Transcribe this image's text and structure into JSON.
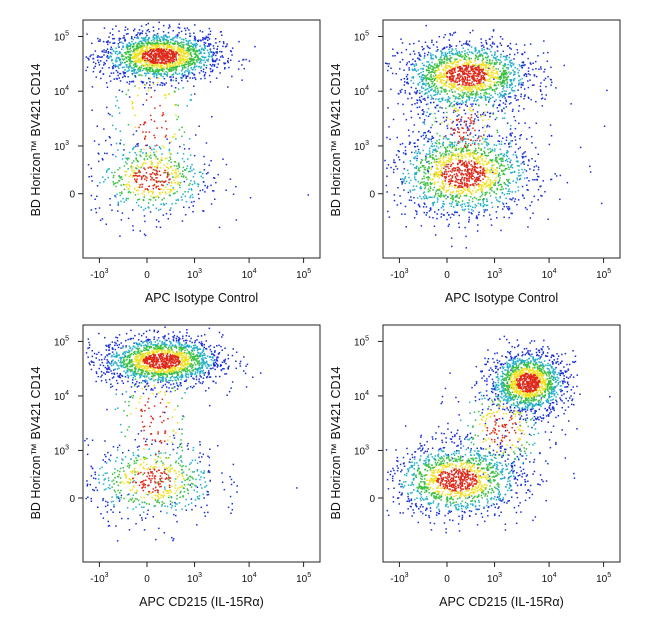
{
  "colors": {
    "density_low": "#1a2fd6",
    "density_mid": "#22b0c8",
    "density_midhigh": "#38c040",
    "density_high": "#f0e020",
    "density_peak": "#e02818"
  },
  "chart_data": [
    {
      "type": "scatter",
      "title": "",
      "xlabel": "APC Isotype Control",
      "ylabel": "BD Horizon™ BV421 CD14",
      "x_ticks": [
        {
          "base": "-10",
          "exp": "3",
          "v": -1000
        },
        {
          "base": "0",
          "exp": "",
          "v": 0
        },
        {
          "base": "10",
          "exp": "3",
          "v": 1000
        },
        {
          "base": "10",
          "exp": "4",
          "v": 10000
        },
        {
          "base": "10",
          "exp": "5",
          "v": 100000
        }
      ],
      "y_ticks": [
        {
          "base": "0",
          "exp": "",
          "v": 0
        },
        {
          "base": "10",
          "exp": "3",
          "v": 1000
        },
        {
          "base": "10",
          "exp": "4",
          "v": 10000
        },
        {
          "base": "10",
          "exp": "5",
          "v": 100000
        }
      ],
      "xlim": [
        -2000,
        200000
      ],
      "ylim": [
        -2000,
        200000
      ],
      "populations": [
        {
          "x": 200,
          "y": 45000,
          "sx": 0.55,
          "sy": 0.22,
          "n": 1700
        },
        {
          "x": 60,
          "y": 250,
          "sx": 0.55,
          "sy": 0.35,
          "n": 520
        },
        {
          "x": 80,
          "y": 3000,
          "sx": 0.45,
          "sy": 0.9,
          "n": 220
        }
      ]
    },
    {
      "type": "scatter",
      "title": "",
      "xlabel": "APC Isotype Control",
      "ylabel": "BD Horizon™ BV421 CD14",
      "x_ticks": [
        {
          "base": "-10",
          "exp": "3",
          "v": -1000
        },
        {
          "base": "0",
          "exp": "",
          "v": 0
        },
        {
          "base": "10",
          "exp": "3",
          "v": 1000
        },
        {
          "base": "10",
          "exp": "4",
          "v": 10000
        },
        {
          "base": "10",
          "exp": "5",
          "v": 100000
        }
      ],
      "y_ticks": [
        {
          "base": "0",
          "exp": "",
          "v": 0
        },
        {
          "base": "10",
          "exp": "3",
          "v": 1000
        },
        {
          "base": "10",
          "exp": "4",
          "v": 10000
        },
        {
          "base": "10",
          "exp": "5",
          "v": 100000
        }
      ],
      "xlim": [
        -2000,
        200000
      ],
      "ylim": [
        -2000,
        200000
      ],
      "populations": [
        {
          "x": 300,
          "y": 20000,
          "sx": 0.6,
          "sy": 0.3,
          "n": 1600
        },
        {
          "x": 250,
          "y": 320,
          "sx": 0.65,
          "sy": 0.4,
          "n": 1500
        },
        {
          "x": 300,
          "y": 2000,
          "sx": 0.5,
          "sy": 0.5,
          "n": 250
        }
      ]
    },
    {
      "type": "scatter",
      "title": "",
      "xlabel": "APC CD215 (IL-15Rα)",
      "ylabel": "BD Horizon™ BV421 CD14",
      "x_ticks": [
        {
          "base": "-10",
          "exp": "3",
          "v": -1000
        },
        {
          "base": "0",
          "exp": "",
          "v": 0
        },
        {
          "base": "10",
          "exp": "3",
          "v": 1000
        },
        {
          "base": "10",
          "exp": "4",
          "v": 10000
        },
        {
          "base": "10",
          "exp": "5",
          "v": 100000
        }
      ],
      "y_ticks": [
        {
          "base": "0",
          "exp": "",
          "v": 0
        },
        {
          "base": "10",
          "exp": "3",
          "v": 1000
        },
        {
          "base": "10",
          "exp": "4",
          "v": 10000
        },
        {
          "base": "10",
          "exp": "5",
          "v": 100000
        }
      ],
      "xlim": [
        -2000,
        200000
      ],
      "ylim": [
        -2000,
        200000
      ],
      "populations": [
        {
          "x": 220,
          "y": 45000,
          "sx": 0.55,
          "sy": 0.22,
          "n": 1700
        },
        {
          "x": 80,
          "y": 280,
          "sx": 0.6,
          "sy": 0.35,
          "n": 560
        },
        {
          "x": 100,
          "y": 3000,
          "sx": 0.45,
          "sy": 0.9,
          "n": 230
        }
      ]
    },
    {
      "type": "scatter",
      "title": "",
      "xlabel": "APC CD215 (IL-15Rα)",
      "ylabel": "BD Horizon™ BV421 CD14",
      "x_ticks": [
        {
          "base": "-10",
          "exp": "3",
          "v": -1000
        },
        {
          "base": "0",
          "exp": "",
          "v": 0
        },
        {
          "base": "10",
          "exp": "3",
          "v": 1000
        },
        {
          "base": "10",
          "exp": "4",
          "v": 10000
        },
        {
          "base": "10",
          "exp": "5",
          "v": 100000
        }
      ],
      "y_ticks": [
        {
          "base": "0",
          "exp": "",
          "v": 0
        },
        {
          "base": "10",
          "exp": "3",
          "v": 1000
        },
        {
          "base": "10",
          "exp": "4",
          "v": 10000
        },
        {
          "base": "10",
          "exp": "5",
          "v": 100000
        }
      ],
      "xlim": [
        -2000,
        200000
      ],
      "ylim": [
        -2000,
        200000
      ],
      "populations": [
        {
          "x": 4000,
          "y": 18000,
          "sx": 0.35,
          "sy": 0.28,
          "n": 1500
        },
        {
          "x": 150,
          "y": 300,
          "sx": 0.6,
          "sy": 0.33,
          "n": 1400
        },
        {
          "x": 1300,
          "y": 2500,
          "sx": 0.45,
          "sy": 0.45,
          "n": 300
        }
      ]
    }
  ]
}
